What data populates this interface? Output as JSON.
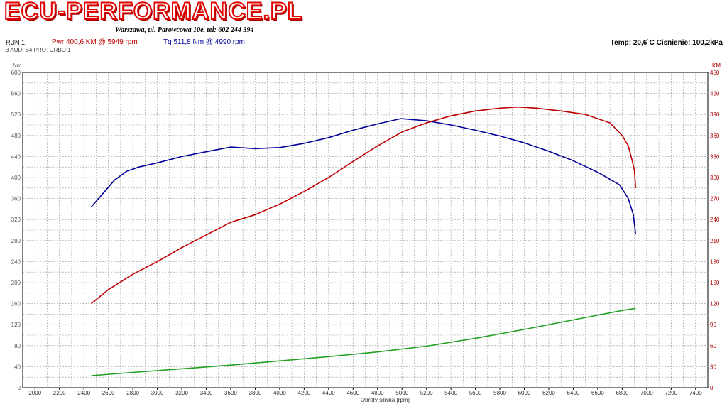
{
  "header": {
    "brand": "ECU-PERFORMANCE.PL",
    "address": "Warszawa, ul. Parowcowa 10e, tel: 602 244 394",
    "run_label": "RUN 1",
    "pwr_text": "Pwr  400,6 KM @ 5949 rpm",
    "tq_text": "Tq 511,8 Nm @ 4990 rpm",
    "conditions": "Temp: 20,6`C   Cisnienie: 100,2kPa",
    "test_name": "3 AUDI S4 PROTURBO 1"
  },
  "colors": {
    "power": "#c00000",
    "torque": "#000099",
    "loss": "#22a022",
    "left_axis_text": "#555555",
    "right_axis_text": "#aa0000"
  },
  "chart_data": {
    "type": "line",
    "xlabel": "Obroty silnika [rpm]",
    "ylabel_left": "Nm",
    "ylabel_right": "KM",
    "xlim": [
      1900,
      7500
    ],
    "ylim_left": [
      0,
      600
    ],
    "ylim_right": [
      0,
      450
    ],
    "x_ticks": [
      2000,
      2200,
      2400,
      2600,
      2800,
      3000,
      3200,
      3400,
      3600,
      3800,
      4000,
      4200,
      4400,
      4600,
      4800,
      5000,
      5200,
      5400,
      5600,
      5800,
      6000,
      6200,
      6400,
      6600,
      6800,
      7000,
      7200,
      7400
    ],
    "y_ticks_left": [
      0,
      40,
      80,
      120,
      160,
      200,
      240,
      280,
      320,
      360,
      400,
      440,
      480,
      520,
      560,
      600
    ],
    "y_ticks_right": [
      0,
      30,
      60,
      90,
      120,
      150,
      180,
      210,
      240,
      270,
      300,
      330,
      360,
      390,
      420,
      450
    ],
    "grid": true,
    "series": [
      {
        "name": "Tq",
        "axis": "left",
        "color": "#000099",
        "x": [
          2460,
          2550,
          2650,
          2750,
          2850,
          3000,
          3200,
          3400,
          3600,
          3800,
          4000,
          4200,
          4400,
          4600,
          4800,
          4990,
          5200,
          5400,
          5600,
          5800,
          6000,
          6200,
          6400,
          6600,
          6780,
          6850,
          6890,
          6910
        ],
        "y": [
          344,
          368,
          395,
          412,
          420,
          428,
          440,
          449,
          458,
          455,
          457,
          465,
          476,
          490,
          502,
          512,
          508,
          500,
          490,
          479,
          466,
          450,
          432,
          410,
          386,
          360,
          330,
          292
        ]
      },
      {
        "name": "Pwr",
        "axis": "right",
        "color": "#c00000",
        "x": [
          2460,
          2600,
          2800,
          3000,
          3200,
          3400,
          3600,
          3800,
          4000,
          4200,
          4400,
          4600,
          4800,
          5000,
          5200,
          5400,
          5600,
          5800,
          5949,
          6100,
          6300,
          6500,
          6700,
          6800,
          6850,
          6880,
          6900,
          6910
        ],
        "y": [
          120,
          140,
          162,
          180,
          200,
          218,
          236,
          247,
          262,
          280,
          300,
          323,
          345,
          365,
          378,
          388,
          395,
          399,
          400.6,
          399,
          395,
          390,
          378,
          360,
          345,
          325,
          310,
          285
        ]
      },
      {
        "name": "",
        "axis": "left",
        "color": "#22a022",
        "x": [
          2460,
          2800,
          3200,
          3600,
          4000,
          4400,
          4800,
          5200,
          5600,
          6000,
          6400,
          6800,
          6910
        ],
        "y": [
          23,
          29,
          36,
          43,
          51,
          59,
          68,
          79,
          94,
          111,
          129,
          147,
          151
        ]
      }
    ]
  }
}
